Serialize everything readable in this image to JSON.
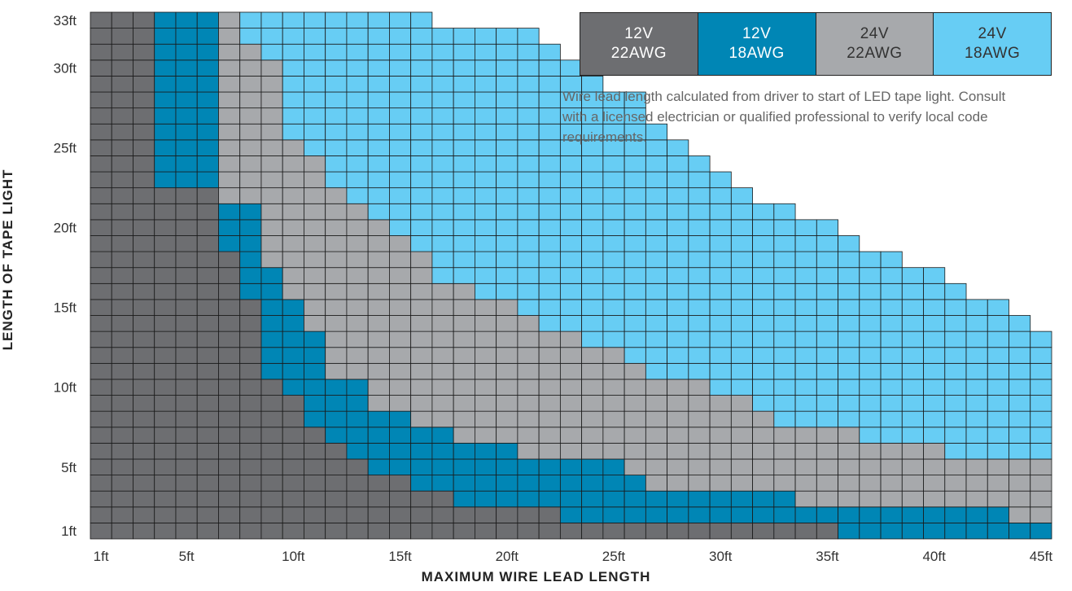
{
  "chart_data": {
    "type": "heatmap",
    "title": "",
    "xlabel": "MAXIMUM WIRE LEAD LENGTH",
    "ylabel": "LENGTH OF TAPE LIGHT",
    "x_unit": "ft",
    "y_unit": "ft",
    "xlim": [
      1,
      45
    ],
    "ylim": [
      1,
      33
    ],
    "x_ticks": [
      "1ft",
      "5ft",
      "10ft",
      "15ft",
      "20ft",
      "25ft",
      "30ft",
      "35ft",
      "40ft",
      "45ft"
    ],
    "y_ticks": [
      "1ft",
      "5ft",
      "10ft",
      "15ft",
      "20ft",
      "25ft",
      "30ft",
      "33ft"
    ],
    "x_tick_values": [
      1,
      5,
      10,
      15,
      20,
      25,
      30,
      35,
      40,
      45
    ],
    "y_tick_values": [
      1,
      5,
      10,
      15,
      20,
      25,
      30,
      33
    ],
    "categories": [
      {
        "key": "12V-22AWG",
        "label_top": "12V",
        "label_bottom": "22AWG",
        "color": "#6d6e71"
      },
      {
        "key": "12V-18AWG",
        "label_top": "12V",
        "label_bottom": "18AWG",
        "color": "#0086b5"
      },
      {
        "key": "24V-22AWG",
        "label_top": "24V",
        "label_bottom": "22AWG",
        "color": "#a7a9ac"
      },
      {
        "key": "24V-18AWG",
        "label_top": "24V",
        "label_bottom": "18AWG",
        "color": "#67cdf4"
      }
    ],
    "max_lead_ft_by_tape_ft": {
      "tape_length_ft": [
        1,
        2,
        3,
        4,
        5,
        6,
        7,
        8,
        9,
        10,
        11,
        12,
        13,
        14,
        15,
        16,
        17,
        18,
        19,
        20,
        21,
        22,
        23,
        24,
        25,
        26,
        27,
        28,
        29,
        30,
        31,
        32,
        33
      ],
      "12V-22AWG": [
        35,
        22,
        17,
        15,
        13,
        12,
        11,
        10,
        10,
        9,
        8,
        8,
        8,
        8,
        8,
        7,
        7,
        7,
        6,
        6,
        6,
        6,
        3,
        3,
        3,
        3,
        3,
        3,
        3,
        3,
        3,
        3,
        3
      ],
      "12V-18AWG": [
        45,
        43,
        33,
        26,
        25,
        20,
        17,
        15,
        13,
        13,
        11,
        11,
        11,
        10,
        10,
        9,
        9,
        8,
        8,
        8,
        8,
        6,
        6,
        6,
        6,
        6,
        6,
        6,
        6,
        6,
        6,
        6,
        6
      ],
      "24V-22AWG": [
        45,
        45,
        45,
        45,
        45,
        40,
        36,
        32,
        31,
        29,
        26,
        25,
        23,
        21,
        20,
        18,
        16,
        16,
        15,
        14,
        13,
        12,
        11,
        11,
        10,
        9,
        9,
        9,
        9,
        9,
        8,
        7,
        7
      ],
      "24V-18AWG": [
        45,
        45,
        45,
        45,
        45,
        45,
        45,
        45,
        45,
        45,
        45,
        45,
        45,
        44,
        43,
        41,
        40,
        38,
        36,
        35,
        33,
        31,
        30,
        29,
        28,
        27,
        26,
        26,
        24,
        23,
        22,
        21,
        16
      ]
    }
  },
  "legend": [
    {
      "line1": "12V",
      "line2": "22AWG"
    },
    {
      "line1": "12V",
      "line2": "18AWG"
    },
    {
      "line1": "24V",
      "line2": "22AWG"
    },
    {
      "line1": "24V",
      "line2": "18AWG"
    }
  ],
  "note": "Wire lead length calculated from driver to start of LED tape light. Consult with a licensed electrician or qualified professional to verify local code requirements."
}
